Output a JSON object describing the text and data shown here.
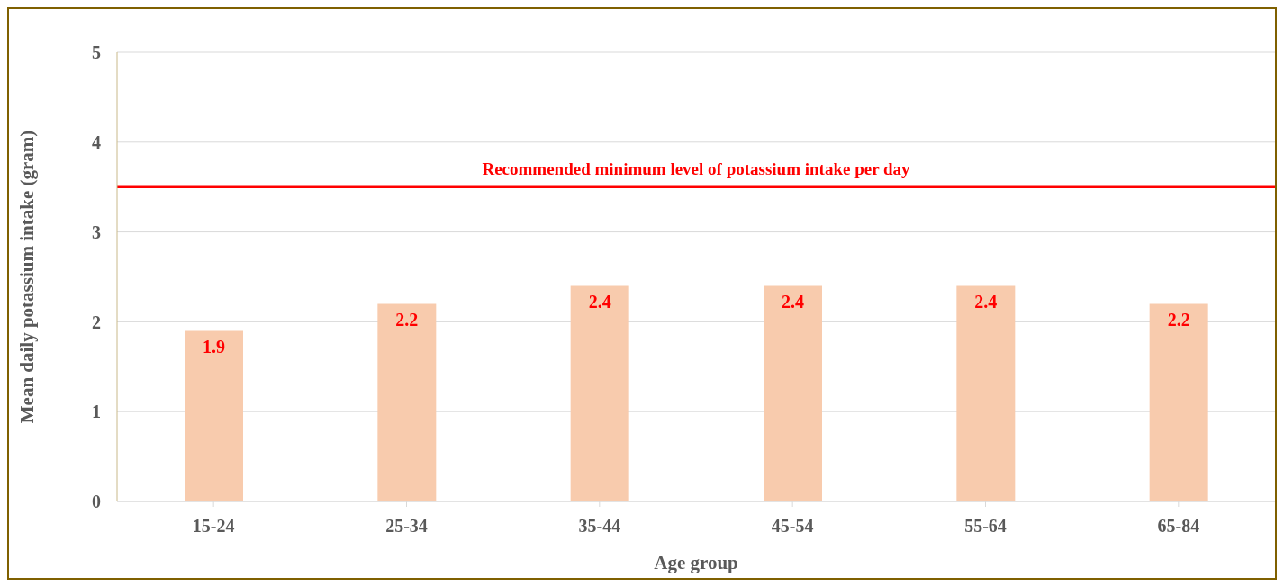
{
  "chart_data": {
    "type": "bar",
    "xlabel": "Age group",
    "ylabel": "Mean daily potassium intake (gram)",
    "categories": [
      "15-24",
      "25-34",
      "35-44",
      "45-54",
      "55-64",
      "65-84"
    ],
    "values": [
      1.9,
      2.2,
      2.4,
      2.4,
      2.4,
      2.2
    ],
    "color": "#f8cbad",
    "ylim": [
      0,
      5
    ],
    "yticks": [
      0,
      1,
      2,
      3,
      4,
      5
    ],
    "grid": "y",
    "data_labels": true,
    "legend": false,
    "ref_lines": [
      {
        "axis": "y",
        "value": 3.5,
        "label": "Recommended minimum level of potassium intake per day",
        "color": "#ff0000"
      }
    ]
  }
}
